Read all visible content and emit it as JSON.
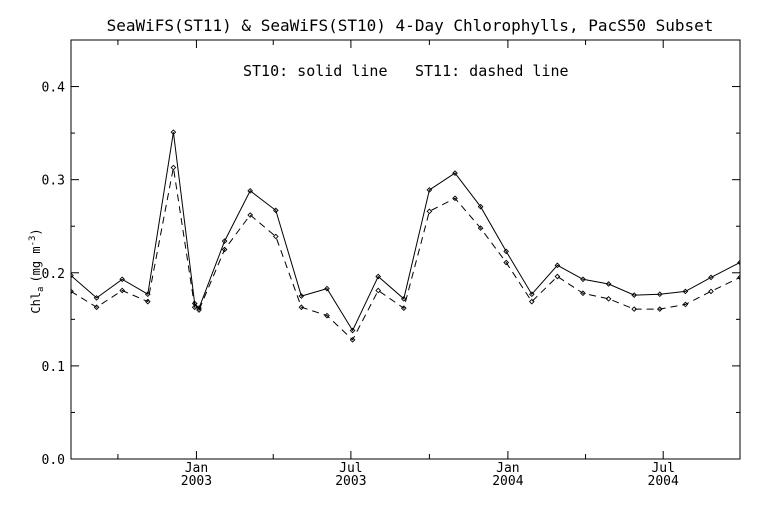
{
  "chart_data": {
    "type": "line",
    "title": "SeaWiFS(ST11) & SeaWiFS(ST10) 4-Day Chlorophylls, PacS50 Subset",
    "annotation_left": "ST10: solid line",
    "annotation_right": "ST11: dashed line",
    "ylabel": "Chl",
    "ylabel_sub": "a",
    "ylabel_units": "(mg m",
    "ylabel_exp": "-3",
    "ylabel_close": ")",
    "ylim": [
      0.0,
      0.45
    ],
    "yticks": [
      "0.0",
      "0.1",
      "0.2",
      "0.3",
      "0.4"
    ],
    "xlim": [
      "2002-08-07",
      "2004-09-29"
    ],
    "xtick_labels": [
      {
        "date": "2003-01-01",
        "month": "Jan",
        "year": "2003"
      },
      {
        "date": "2003-07-01",
        "month": "Jul",
        "year": "2003"
      },
      {
        "date": "2004-01-01",
        "month": "Jan",
        "year": "2004"
      },
      {
        "date": "2004-07-01",
        "month": "Jul",
        "year": "2004"
      }
    ],
    "x": [
      "2002-08-07",
      "2002-09-06",
      "2002-10-06",
      "2002-11-05",
      "2002-12-05",
      "2002-12-30",
      "2003-01-04",
      "2003-02-03",
      "2003-03-05",
      "2003-04-04",
      "2003-05-04",
      "2003-06-03",
      "2003-07-03",
      "2003-08-02",
      "2003-09-01",
      "2003-10-01",
      "2003-10-31",
      "2003-11-30",
      "2003-12-30",
      "2004-01-29",
      "2004-02-28",
      "2004-03-29",
      "2004-04-28",
      "2004-05-28",
      "2004-06-27",
      "2004-07-27",
      "2004-08-26",
      "2004-09-29"
    ],
    "series": [
      {
        "name": "ST10",
        "style": "solid",
        "values": [
          0.197,
          0.173,
          0.193,
          0.177,
          0.351,
          0.167,
          0.162,
          0.234,
          0.288,
          0.267,
          0.175,
          0.183,
          0.138,
          0.196,
          0.172,
          0.289,
          0.307,
          0.271,
          0.223,
          0.177,
          0.208,
          0.193,
          0.188,
          0.176,
          0.177,
          0.18,
          0.195,
          0.211
        ]
      },
      {
        "name": "ST11",
        "style": "dashed",
        "values": [
          0.18,
          0.163,
          0.181,
          0.169,
          0.313,
          0.163,
          0.16,
          0.225,
          0.262,
          0.239,
          0.163,
          0.154,
          0.128,
          0.181,
          0.162,
          0.266,
          0.28,
          0.248,
          0.211,
          0.169,
          0.196,
          0.178,
          0.172,
          0.161,
          0.161,
          0.166,
          0.18,
          0.195
        ]
      }
    ],
    "x_minor_ticks": [
      "2002-10-01",
      "2003-04-01",
      "2003-10-01",
      "2004-04-01"
    ],
    "grid": false,
    "marker": "diamond",
    "line_color": "#000000"
  }
}
